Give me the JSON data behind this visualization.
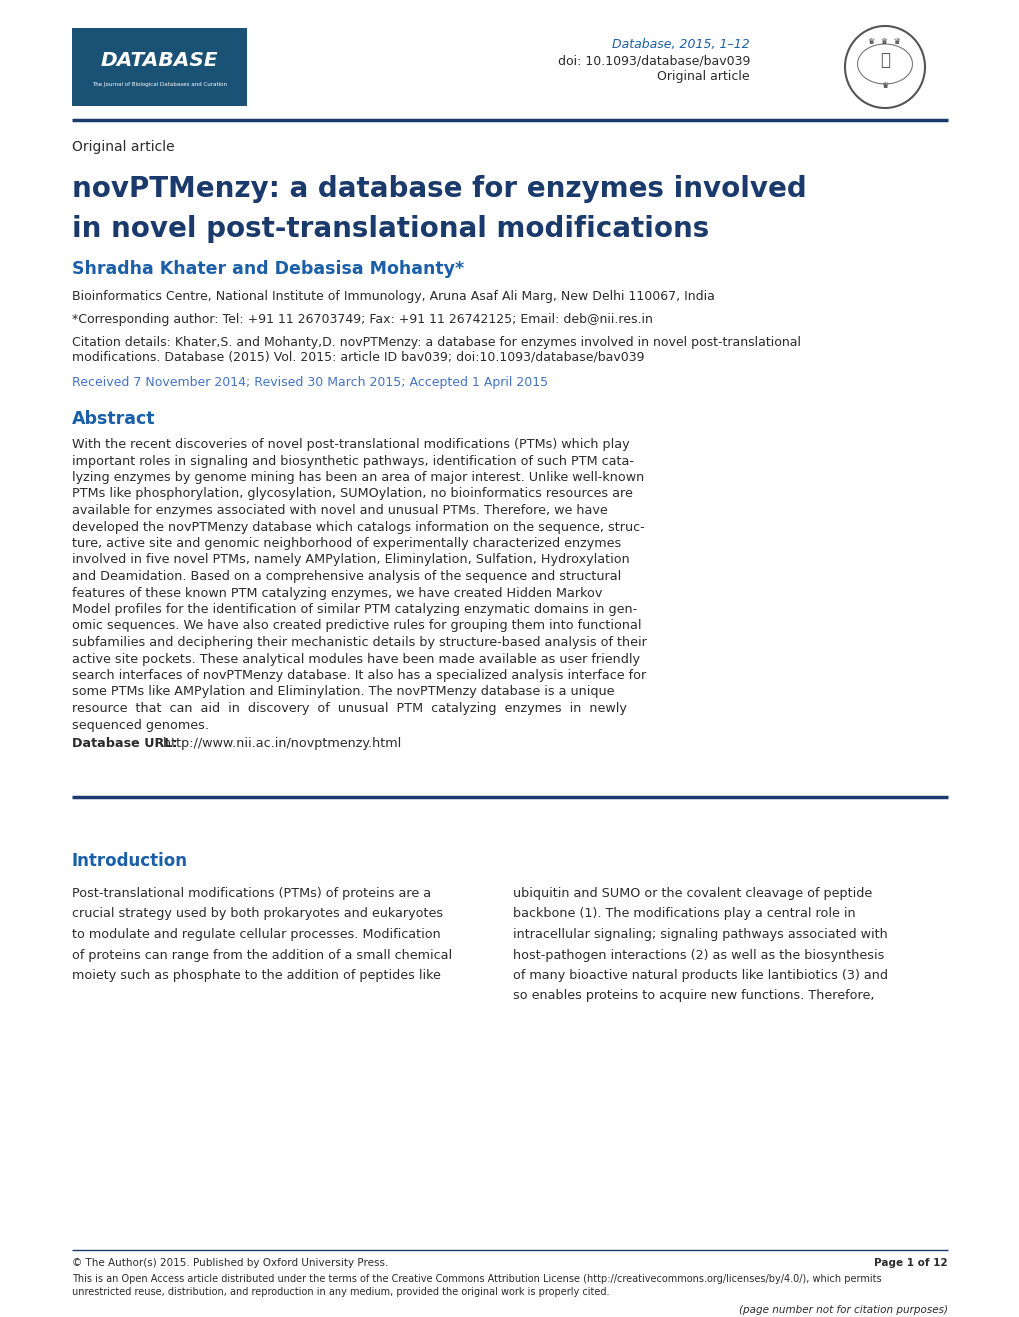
{
  "page_bg": "#ffffff",
  "header_line_color": "#1a3a6b",
  "footer_line_color": "#1a3a6b",
  "database_logo_color": "#1a5276",
  "journal_info_color": "#1a5fa8",
  "journal_info": "Database, 2015, 1–12",
  "doi_info": "doi: 10.1093/database/bav039",
  "original_article_header": "Original article",
  "section_label": "Original article",
  "title_line1": "novPTMenzy: a database for enzymes involved",
  "title_line2": "in novel post-translational modifications",
  "title_color": "#1a3a6b",
  "authors": "Shradha Khater and Debasisa Mohanty*",
  "authors_color": "#1a5fa8",
  "affiliation": "Bioinformatics Centre, National Institute of Immunology, Aruna Asaf Ali Marg, New Delhi 110067, India",
  "corresponding": "*Corresponding author: Tel: +91 11 26703749; Fax: +91 11 26742125; Email: deb@nii.res.in",
  "citation_line1": "Citation details: Khater,S. and Mohanty,D. novPTMenzy: a database for enzymes involved in novel post-translational",
  "citation_line2": "modifications. Database (2015) Vol. 2015: article ID bav039; doi:10.1093/database/bav039",
  "received": "Received 7 November 2014; Revised 30 March 2015; Accepted 1 April 2015",
  "received_color": "#4472c4",
  "abstract_title": "Abstract",
  "abstract_title_color": "#1a5fa8",
  "abstract_lines": [
    "With the recent discoveries of novel post-translational modifications (PTMs) which play",
    "important roles in signaling and biosynthetic pathways, identification of such PTM cata-",
    "lyzing enzymes by genome mining has been an area of major interest. Unlike well-known",
    "PTMs like phosphorylation, glycosylation, SUMOylation, no bioinformatics resources are",
    "available for enzymes associated with novel and unusual PTMs. Therefore, we have",
    "developed the novPTMenzy database which catalogs information on the sequence, struc-",
    "ture, active site and genomic neighborhood of experimentally characterized enzymes",
    "involved in five novel PTMs, namely AMPylation, Eliminylation, Sulfation, Hydroxylation",
    "and Deamidation. Based on a comprehensive analysis of the sequence and structural",
    "features of these known PTM catalyzing enzymes, we have created Hidden Markov",
    "Model profiles for the identification of similar PTM catalyzing enzymatic domains in gen-",
    "omic sequences. We have also created predictive rules for grouping them into functional",
    "subfamilies and deciphering their mechanistic details by structure-based analysis of their",
    "active site pockets. These analytical modules have been made available as user friendly",
    "search interfaces of novPTMenzy database. It also has a specialized analysis interface for",
    "some PTMs like AMPylation and Eliminylation. The novPTMenzy database is a unique",
    "resource  that  can  aid  in  discovery  of  unusual  PTM  catalyzing  enzymes  in  newly",
    "sequenced genomes."
  ],
  "database_url_bold": "Database URL:",
  "database_url": " http://www.nii.ac.in/novptmenzy.html",
  "intro_title": "Introduction",
  "intro_title_color": "#1a5fa8",
  "intro_left_lines": [
    "Post-translational modifications (PTMs) of proteins are a",
    "crucial strategy used by both prokaryotes and eukaryotes",
    "to modulate and regulate cellular processes. Modification",
    "of proteins can range from the addition of a small chemical",
    "moiety such as phosphate to the addition of peptides like"
  ],
  "intro_right_lines": [
    "ubiquitin and SUMO or the covalent cleavage of peptide",
    "backbone (1). The modifications play a central role in",
    "intracellular signaling; signaling pathways associated with",
    "host-pathogen interactions (2) as well as the biosynthesis",
    "of many bioactive natural products like lantibiotics (3) and",
    "so enables proteins to acquire new functions. Therefore,"
  ],
  "footer_left": "© The Author(s) 2015. Published by Oxford University Press.",
  "footer_right": "Page 1 of 12",
  "footer_small_line1": "This is an Open Access article distributed under the terms of the Creative Commons Attribution License (http://creativecommons.org/licenses/by/4.0/), which permits",
  "footer_small_line2": "unrestricted reuse, distribution, and reproduction in any medium, provided the original work is properly cited.",
  "footer_page_note": "(page number not for citation purposes)",
  "text_color": "#2b2b2b",
  "citation_italic_word": "Database"
}
